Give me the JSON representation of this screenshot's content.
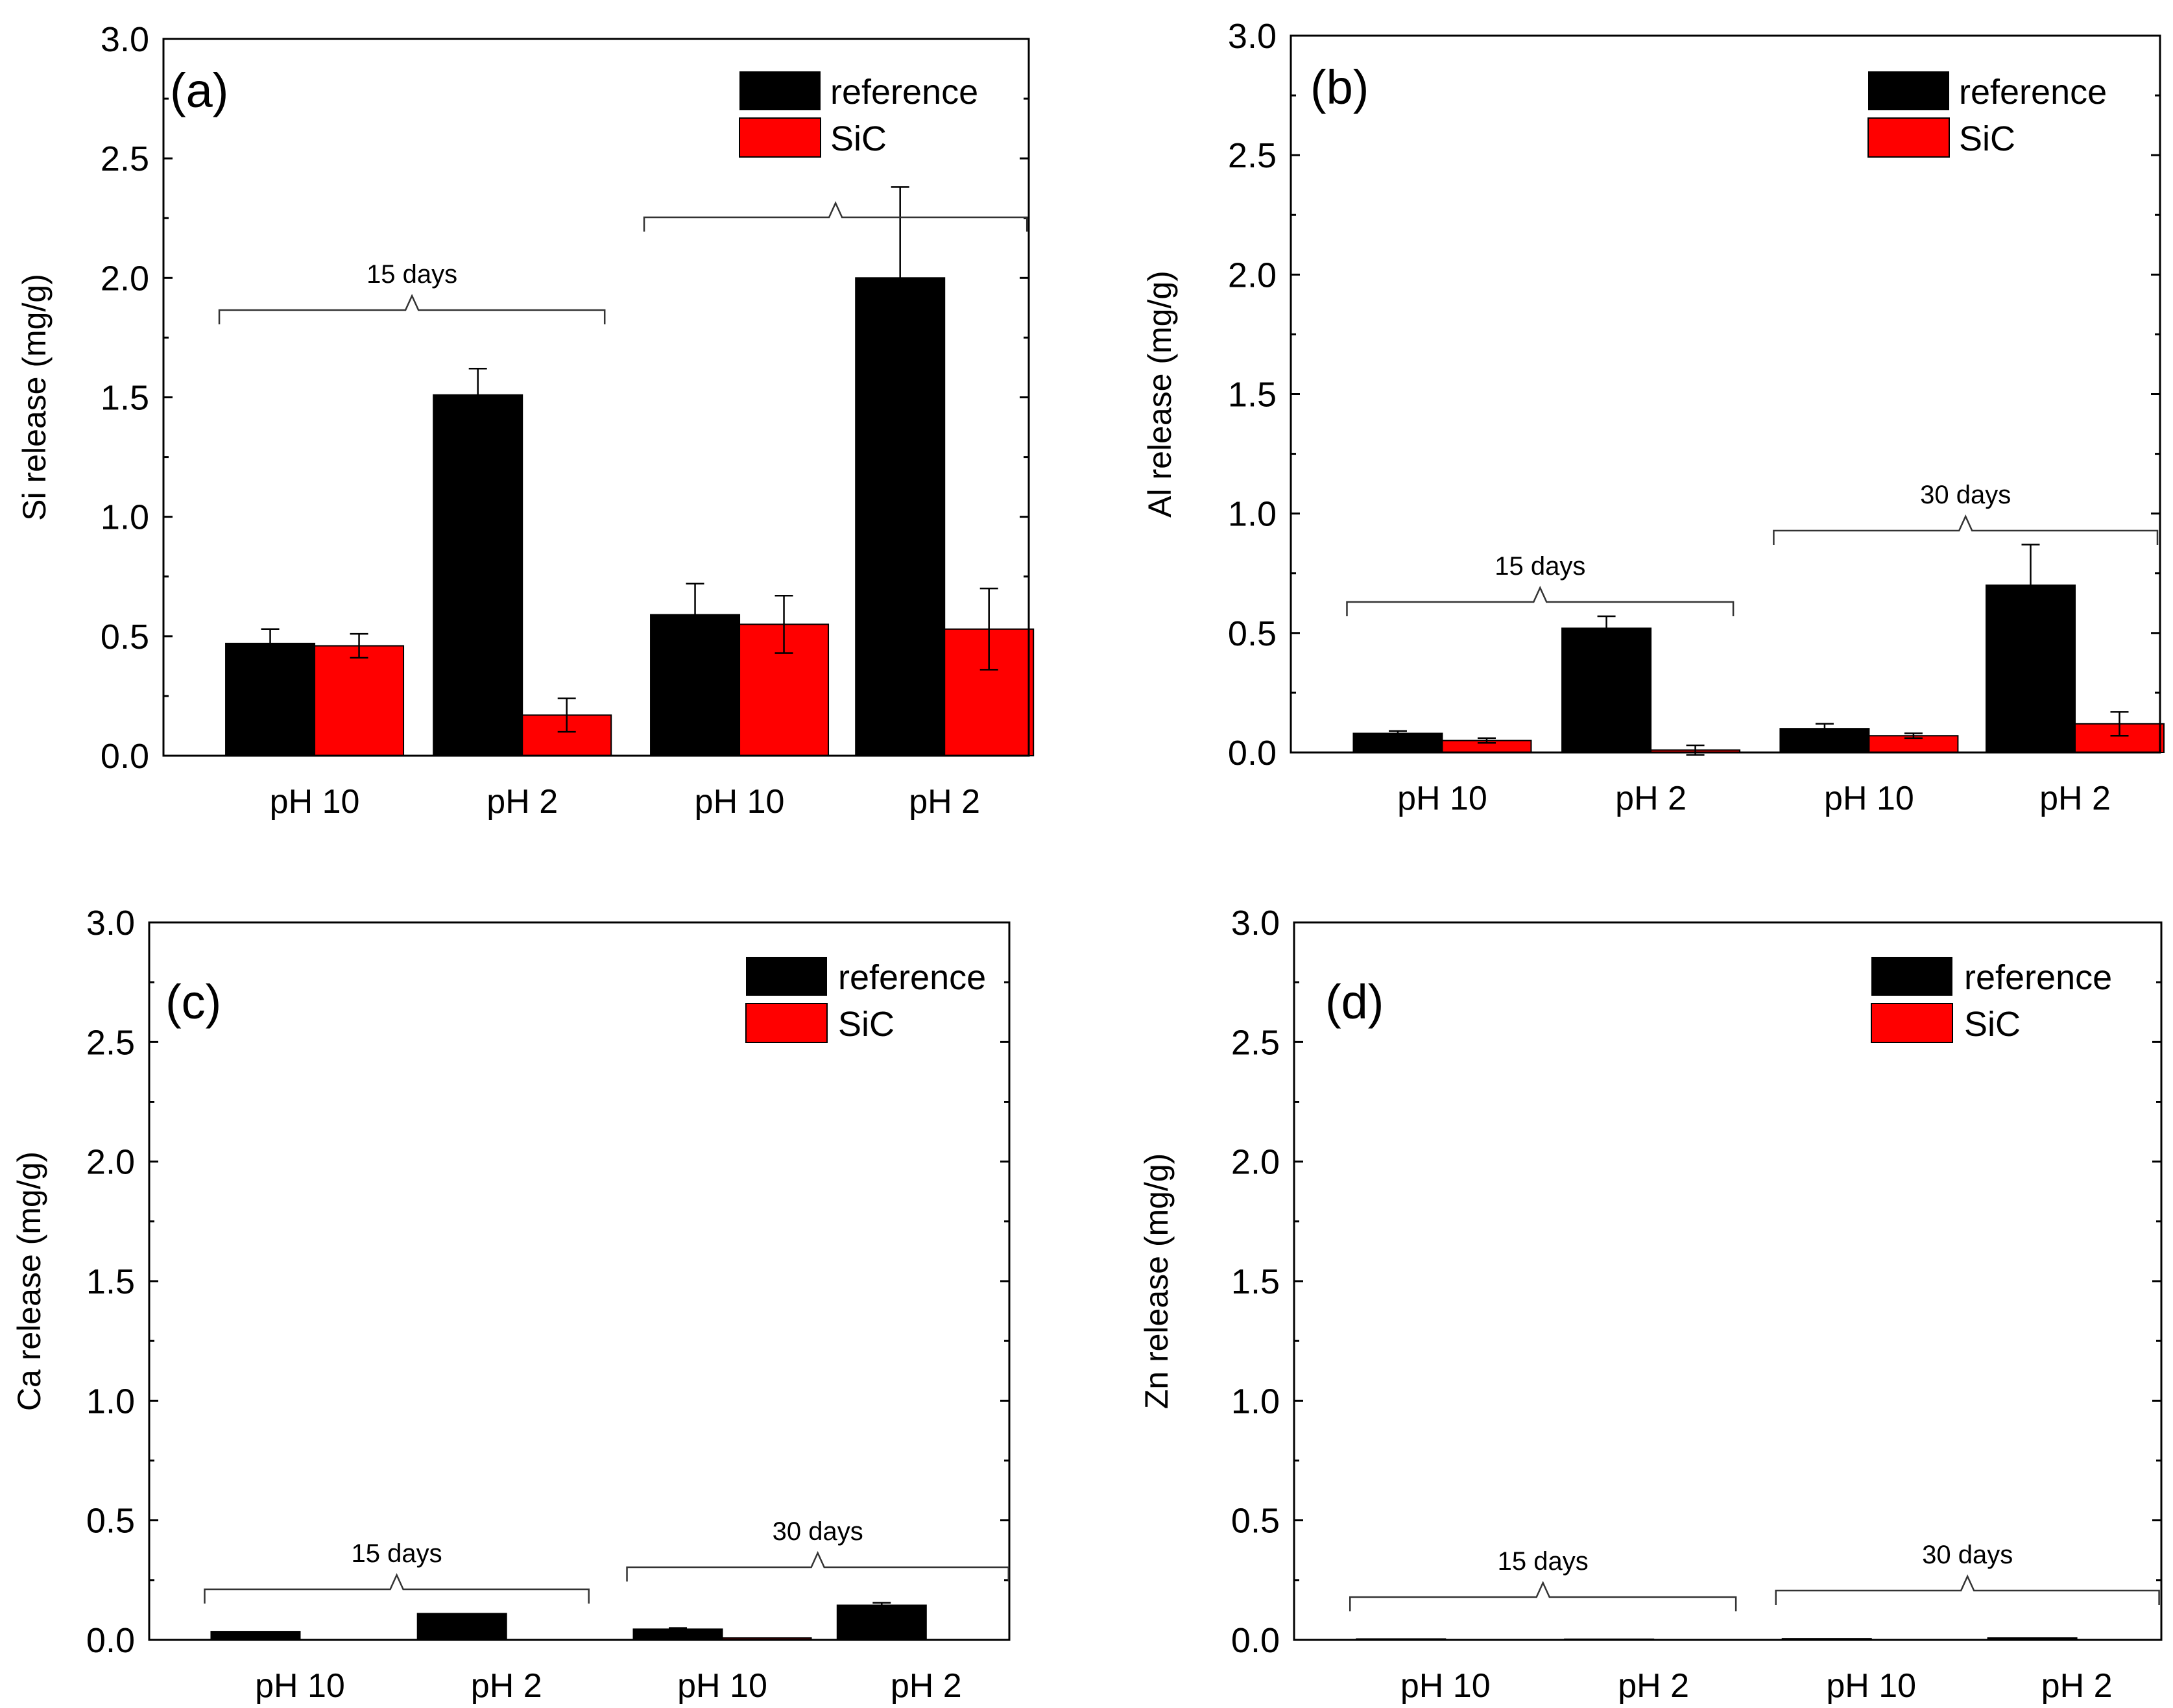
{
  "legend": {
    "reference": "reference",
    "sic": "SiC"
  },
  "colors": {
    "reference": "#000000",
    "sic": "#ff0000"
  },
  "chart_data": [
    {
      "type": "bar",
      "panel_label": "(a)",
      "ylabel": "Si release (mg/g)",
      "categories": [
        "pH 10",
        "pH 2",
        "pH 10",
        "pH 2"
      ],
      "ylim": [
        0,
        3.0
      ],
      "yticks": [
        "0.0",
        "0.5",
        "1.0",
        "1.5",
        "2.0",
        "2.5",
        "3.0"
      ],
      "series": [
        {
          "name": "reference",
          "values": [
            0.47,
            1.51,
            0.59,
            2.0
          ],
          "errors": [
            0.06,
            0.11,
            0.13,
            0.38
          ]
        },
        {
          "name": "SiC",
          "values": [
            0.46,
            0.17,
            0.55,
            0.53
          ],
          "errors": [
            0.05,
            0.07,
            0.12,
            0.17
          ]
        }
      ],
      "annotations": [
        {
          "text": "15 days",
          "groups": [
            0,
            1
          ]
        },
        {
          "text": "",
          "groups": [
            2,
            3
          ]
        }
      ]
    },
    {
      "type": "bar",
      "panel_label": "(b)",
      "ylabel": "Al release (mg/g)",
      "categories": [
        "pH 10",
        "pH 2",
        "pH 10",
        "pH 2"
      ],
      "ylim": [
        0,
        3.0
      ],
      "yticks": [
        "0.0",
        "0.5",
        "1.0",
        "1.5",
        "2.0",
        "2.5",
        "3.0"
      ],
      "series": [
        {
          "name": "reference",
          "values": [
            0.08,
            0.52,
            0.1,
            0.7
          ],
          "errors": [
            0.01,
            0.05,
            0.02,
            0.17
          ]
        },
        {
          "name": "SiC",
          "values": [
            0.05,
            0.01,
            0.07,
            0.12
          ],
          "errors": [
            0.01,
            0.02,
            0.01,
            0.05
          ]
        }
      ],
      "annotations": [
        {
          "text": "15 days",
          "groups": [
            0,
            1
          ]
        },
        {
          "text": "30 days",
          "groups": [
            2,
            3
          ]
        }
      ]
    },
    {
      "type": "bar",
      "panel_label": "(c)",
      "ylabel": "Ca release (mg/g)",
      "categories": [
        "pH 10",
        "pH 2",
        "pH 10",
        "pH 2"
      ],
      "ylim": [
        0,
        3.0
      ],
      "yticks": [
        "0.0",
        "0.5",
        "1.0",
        "1.5",
        "2.0",
        "2.5",
        "3.0"
      ],
      "series": [
        {
          "name": "reference",
          "values": [
            0.035,
            0.11,
            0.045,
            0.145
          ],
          "errors": [
            0.0,
            0.0,
            0.005,
            0.01
          ]
        },
        {
          "name": "SiC",
          "values": [
            0.0,
            0.0,
            0.008,
            0.0
          ],
          "errors": [
            0.0,
            0.0,
            0.0,
            0.0
          ]
        }
      ],
      "annotations": [
        {
          "text": "15 days",
          "groups": [
            0,
            1
          ]
        },
        {
          "text": "30 days",
          "groups": [
            2,
            3
          ]
        }
      ]
    },
    {
      "type": "bar",
      "panel_label": "(d)",
      "ylabel": "Zn release (mg/g)",
      "categories": [
        "pH 10",
        "pH 2",
        "pH 10",
        "pH 2"
      ],
      "ylim": [
        0,
        3.0
      ],
      "yticks": [
        "0.0",
        "0.5",
        "1.0",
        "1.5",
        "2.0",
        "2.5",
        "3.0"
      ],
      "series": [
        {
          "name": "reference",
          "values": [
            0.004,
            0.003,
            0.005,
            0.008
          ],
          "errors": [
            0.0,
            0.0,
            0.0,
            0.002
          ]
        },
        {
          "name": "SiC",
          "values": [
            0.0,
            0.0,
            0.0,
            0.0
          ],
          "errors": [
            0.0,
            0.0,
            0.0,
            0.0
          ]
        }
      ],
      "annotations": [
        {
          "text": "15 days",
          "groups": [
            0,
            1
          ]
        },
        {
          "text": "30 days",
          "groups": [
            2,
            3
          ]
        }
      ]
    }
  ]
}
